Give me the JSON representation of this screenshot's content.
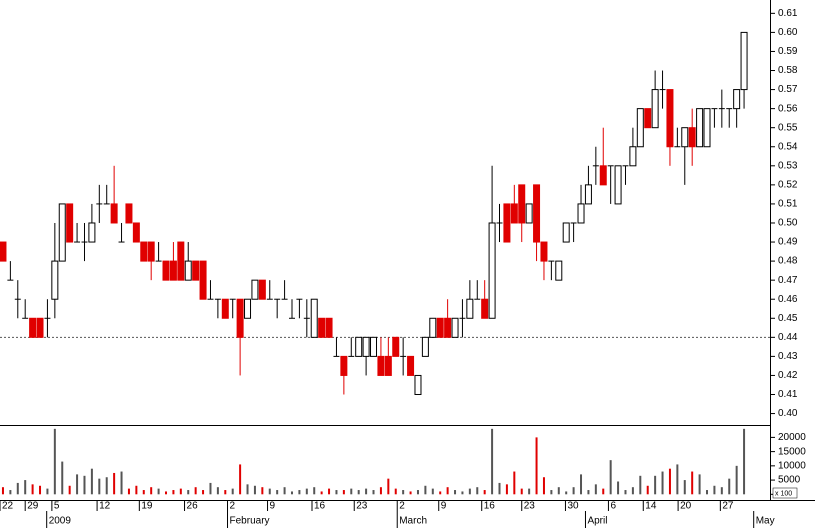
{
  "chart_data": [
    {
      "type": "candlestick",
      "ohlc": [
        [
          0.49,
          0.49,
          0.48,
          0.48
        ],
        [
          0.47,
          0.48,
          0.47,
          0.47
        ],
        [
          0.46,
          0.47,
          0.45,
          0.46
        ],
        [
          0.45,
          0.46,
          0.45,
          0.45
        ],
        [
          0.45,
          0.45,
          0.44,
          0.44
        ],
        [
          0.45,
          0.45,
          0.44,
          0.44
        ],
        [
          0.45,
          0.46,
          0.44,
          0.45
        ],
        [
          0.46,
          0.5,
          0.45,
          0.48
        ],
        [
          0.48,
          0.51,
          0.48,
          0.51
        ],
        [
          0.51,
          0.51,
          0.49,
          0.49
        ],
        [
          0.49,
          0.5,
          0.49,
          0.49
        ],
        [
          0.49,
          0.5,
          0.48,
          0.49
        ],
        [
          0.49,
          0.51,
          0.49,
          0.5
        ],
        [
          0.51,
          0.52,
          0.5,
          0.51
        ],
        [
          0.51,
          0.52,
          0.51,
          0.51
        ],
        [
          0.51,
          0.53,
          0.5,
          0.5
        ],
        [
          0.49,
          0.5,
          0.49,
          0.49
        ],
        [
          0.51,
          0.51,
          0.5,
          0.5
        ],
        [
          0.5,
          0.5,
          0.49,
          0.49
        ],
        [
          0.49,
          0.49,
          0.48,
          0.48
        ],
        [
          0.49,
          0.49,
          0.47,
          0.48
        ],
        [
          0.48,
          0.49,
          0.48,
          0.48
        ],
        [
          0.48,
          0.48,
          0.47,
          0.47
        ],
        [
          0.48,
          0.49,
          0.47,
          0.47
        ],
        [
          0.49,
          0.49,
          0.47,
          0.47
        ],
        [
          0.47,
          0.49,
          0.47,
          0.48
        ],
        [
          0.48,
          0.48,
          0.47,
          0.47
        ],
        [
          0.48,
          0.48,
          0.46,
          0.46
        ],
        [
          0.46,
          0.47,
          0.46,
          0.46
        ],
        [
          0.46,
          0.46,
          0.45,
          0.46
        ],
        [
          0.46,
          0.46,
          0.45,
          0.45
        ],
        [
          0.46,
          0.46,
          0.45,
          0.46
        ],
        [
          0.46,
          0.46,
          0.42,
          0.44
        ],
        [
          0.45,
          0.46,
          0.45,
          0.46
        ],
        [
          0.46,
          0.47,
          0.46,
          0.47
        ],
        [
          0.47,
          0.47,
          0.46,
          0.46
        ],
        [
          0.46,
          0.47,
          0.46,
          0.46
        ],
        [
          0.46,
          0.46,
          0.45,
          0.46
        ],
        [
          0.46,
          0.47,
          0.46,
          0.46
        ],
        [
          0.45,
          0.46,
          0.45,
          0.45
        ],
        [
          0.46,
          0.46,
          0.45,
          0.46
        ],
        [
          0.45,
          0.46,
          0.44,
          0.45
        ],
        [
          0.44,
          0.46,
          0.44,
          0.46
        ],
        [
          0.45,
          0.45,
          0.44,
          0.44
        ],
        [
          0.45,
          0.45,
          0.44,
          0.44
        ],
        [
          0.43,
          0.44,
          0.43,
          0.43
        ],
        [
          0.43,
          0.43,
          0.41,
          0.42
        ],
        [
          0.43,
          0.44,
          0.43,
          0.43
        ],
        [
          0.43,
          0.44,
          0.43,
          0.44
        ],
        [
          0.43,
          0.44,
          0.42,
          0.44
        ],
        [
          0.43,
          0.44,
          0.43,
          0.44
        ],
        [
          0.43,
          0.44,
          0.42,
          0.42
        ],
        [
          0.43,
          0.44,
          0.42,
          0.42
        ],
        [
          0.44,
          0.44,
          0.43,
          0.43
        ],
        [
          0.43,
          0.44,
          0.42,
          0.43
        ],
        [
          0.43,
          0.43,
          0.42,
          0.42
        ],
        [
          0.41,
          0.42,
          0.41,
          0.42
        ],
        [
          0.43,
          0.44,
          0.43,
          0.44
        ],
        [
          0.44,
          0.45,
          0.44,
          0.45
        ],
        [
          0.45,
          0.45,
          0.44,
          0.44
        ],
        [
          0.45,
          0.46,
          0.44,
          0.44
        ],
        [
          0.44,
          0.45,
          0.44,
          0.45
        ],
        [
          0.45,
          0.46,
          0.44,
          0.45
        ],
        [
          0.45,
          0.47,
          0.45,
          0.46
        ],
        [
          0.46,
          0.47,
          0.46,
          0.46
        ],
        [
          0.46,
          0.47,
          0.45,
          0.45
        ],
        [
          0.45,
          0.53,
          0.45,
          0.5
        ],
        [
          0.5,
          0.51,
          0.49,
          0.5
        ],
        [
          0.51,
          0.51,
          0.49,
          0.49
        ],
        [
          0.51,
          0.52,
          0.5,
          0.5
        ],
        [
          0.52,
          0.52,
          0.49,
          0.5
        ],
        [
          0.5,
          0.51,
          0.5,
          0.51
        ],
        [
          0.52,
          0.52,
          0.48,
          0.49
        ],
        [
          0.49,
          0.49,
          0.47,
          0.48
        ],
        [
          0.48,
          0.48,
          0.47,
          0.48
        ],
        [
          0.47,
          0.48,
          0.47,
          0.48
        ],
        [
          0.49,
          0.5,
          0.49,
          0.5
        ],
        [
          0.5,
          0.5,
          0.49,
          0.5
        ],
        [
          0.5,
          0.52,
          0.5,
          0.51
        ],
        [
          0.51,
          0.53,
          0.51,
          0.52
        ],
        [
          0.53,
          0.54,
          0.52,
          0.53
        ],
        [
          0.53,
          0.55,
          0.52,
          0.52
        ],
        [
          0.53,
          0.53,
          0.51,
          0.53
        ],
        [
          0.51,
          0.53,
          0.51,
          0.53
        ],
        [
          0.53,
          0.53,
          0.52,
          0.53
        ],
        [
          0.53,
          0.55,
          0.53,
          0.54
        ],
        [
          0.54,
          0.56,
          0.54,
          0.56
        ],
        [
          0.56,
          0.56,
          0.55,
          0.55
        ],
        [
          0.55,
          0.58,
          0.55,
          0.57
        ],
        [
          0.57,
          0.58,
          0.56,
          0.57
        ],
        [
          0.57,
          0.57,
          0.53,
          0.54
        ],
        [
          0.54,
          0.55,
          0.54,
          0.54
        ],
        [
          0.54,
          0.55,
          0.52,
          0.55
        ],
        [
          0.55,
          0.56,
          0.53,
          0.54
        ],
        [
          0.54,
          0.56,
          0.54,
          0.56
        ],
        [
          0.54,
          0.56,
          0.54,
          0.56
        ],
        [
          0.56,
          0.56,
          0.55,
          0.56
        ],
        [
          0.56,
          0.57,
          0.55,
          0.56
        ],
        [
          0.56,
          0.56,
          0.55,
          0.56
        ],
        [
          0.56,
          0.57,
          0.55,
          0.57
        ],
        [
          0.57,
          0.6,
          0.56,
          0.6
        ]
      ],
      "up_color": "#ffffff",
      "down_color": "#e00000",
      "xlim": [
        -0.4,
        103.5
      ],
      "ylim": [
        0.394,
        0.617
      ],
      "yticks": [
        {
          "value": 0.4,
          "label": "0.40"
        },
        0.41,
        0.42,
        0.43,
        0.44,
        0.45,
        0.46,
        0.47,
        0.48,
        0.49,
        {
          "value": 0.5,
          "label": "0.50"
        },
        0.51,
        0.52,
        0.53,
        0.54,
        0.55,
        0.56,
        0.57,
        0.58,
        0.59,
        {
          "value": 0.6,
          "label": "0.60"
        },
        0.61
      ],
      "reference_line": 0.44,
      "xticks": [
        {
          "value": -0.4,
          "label": "22"
        },
        {
          "value": 3,
          "label": "29"
        },
        {
          "value": 6.6,
          "label": "5"
        },
        {
          "value": 12.7,
          "label": "12"
        },
        {
          "value": 18.4,
          "label": "19"
        },
        {
          "value": 24.5,
          "label": "26"
        },
        {
          "value": 30.3,
          "label": "2"
        },
        {
          "value": 35.7,
          "label": "9"
        },
        {
          "value": 41.7,
          "label": "16"
        },
        {
          "value": 47.4,
          "label": "23"
        },
        {
          "value": 53.2,
          "label": "2"
        },
        {
          "value": 58.8,
          "label": "9"
        },
        {
          "value": 64.6,
          "label": "16"
        },
        {
          "value": 70,
          "label": "23"
        },
        {
          "value": 75.9,
          "label": "30"
        },
        {
          "value": 81.7,
          "label": "6"
        },
        {
          "value": 86.4,
          "label": "14"
        },
        {
          "value": 91.1,
          "label": "20"
        },
        {
          "value": 96.8,
          "label": "27"
        }
      ],
      "month_ticks": [
        {
          "value": 5.9,
          "label": "2009"
        },
        {
          "value": 30.3,
          "label": "February"
        },
        {
          "value": 53.2,
          "label": "March"
        },
        {
          "value": 78.6,
          "label": "April"
        },
        {
          "value": 101.3,
          "label": "May"
        }
      ]
    },
    {
      "type": "bar",
      "values": [
        2500,
        1500,
        4000,
        5000,
        3500,
        3000,
        2000,
        23000,
        11500,
        3000,
        7000,
        6500,
        9000,
        5500,
        6000,
        7500,
        8000,
        2000,
        3000,
        1500,
        2500,
        2000,
        1000,
        1500,
        2000,
        1500,
        2500,
        1500,
        4000,
        2500,
        1500,
        2000,
        10500,
        3500,
        3000,
        2500,
        2000,
        1500,
        2500,
        1000,
        1500,
        2000,
        2500,
        1000,
        2000,
        1500,
        1500,
        2000,
        1500,
        2000,
        1500,
        2500,
        5500,
        2000,
        1500,
        1000,
        1500,
        3000,
        2000,
        1000,
        2500,
        1500,
        1000,
        2000,
        2500,
        1500,
        23000,
        4000,
        3500,
        8000,
        2000,
        2000,
        20000,
        6000,
        1500,
        2500,
        1000,
        2500,
        7000,
        1500,
        3500,
        2000,
        12000,
        4500,
        1500,
        2500,
        6500,
        3000,
        6500,
        8000,
        9000,
        10500,
        5000,
        8000,
        7000,
        1500,
        3000,
        2500,
        5500,
        10000,
        23000
      ],
      "up_color": "#555555",
      "down_color": "#e00000",
      "ylim": [
        -2000,
        24000
      ],
      "yticks": [
        0,
        5000,
        10000,
        15000,
        20000
      ],
      "unit_label": "x 100"
    }
  ]
}
